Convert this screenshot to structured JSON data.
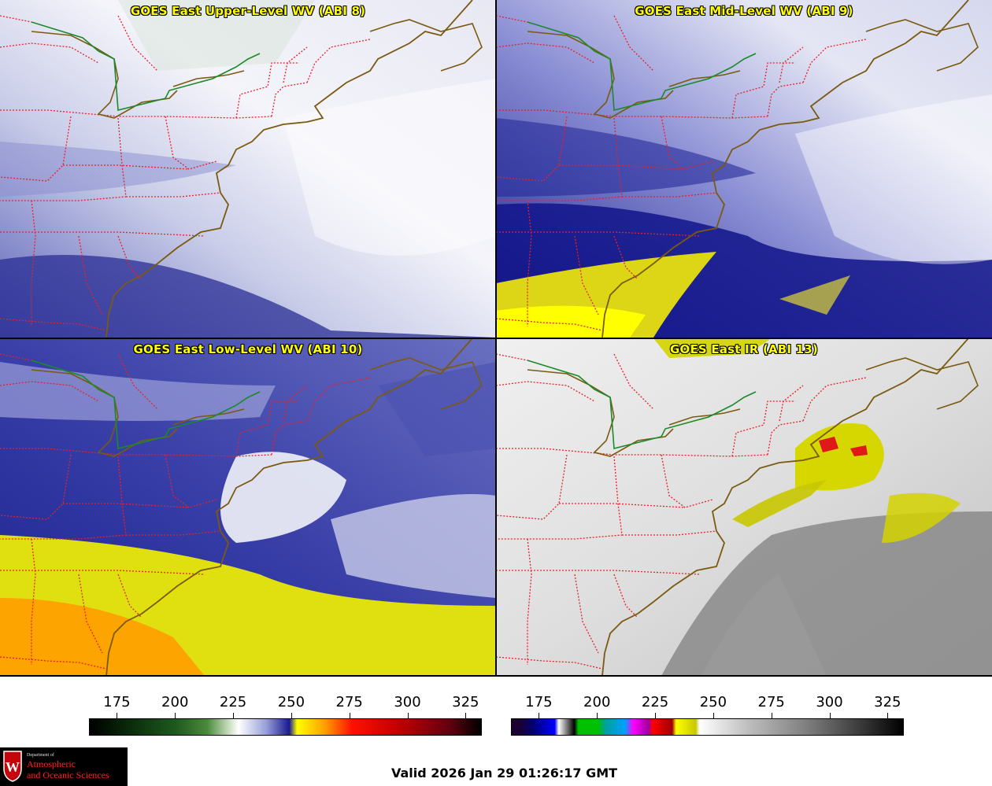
{
  "panels": [
    {
      "title": "GOES East Upper-Level WV (ABI 8)",
      "style": "wv_upper"
    },
    {
      "title": "GOES East Mid-Level WV (ABI 9)",
      "style": "wv_mid"
    },
    {
      "title": "GOES East Low-Level WV (ABI 10)",
      "style": "wv_low"
    },
    {
      "title": "GOES East IR (ABI 13)",
      "style": "ir"
    }
  ],
  "colorbars": {
    "wv": {
      "ticks": [
        "175",
        "200",
        "225",
        "250",
        "275",
        "300",
        "325"
      ],
      "range": [
        163,
        332
      ]
    },
    "ir": {
      "ticks": [
        "175",
        "200",
        "225",
        "250",
        "275",
        "300",
        "325"
      ],
      "range": [
        163,
        332
      ]
    }
  },
  "logo": {
    "dept": "Department of",
    "line1": "Atmospheric",
    "line2": "and Oceanic Sciences"
  },
  "valid_time": "Valid 2026 Jan 29 01:26:17 GMT",
  "colors": {
    "state_border": "#e8202a",
    "coastline": "#7a5a10",
    "intl_border": "#1a8a2a",
    "title_text": "#ffff00"
  }
}
